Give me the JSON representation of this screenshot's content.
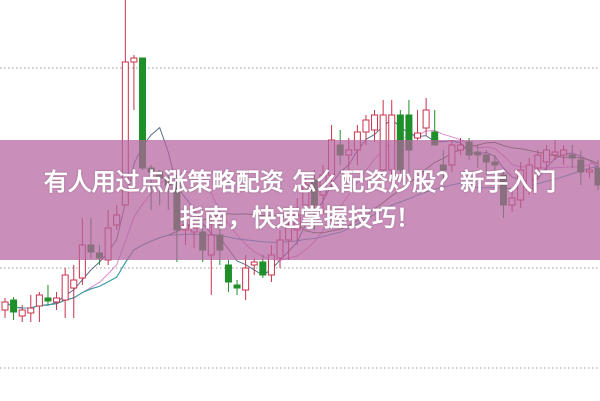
{
  "banner": {
    "line1": "有人用过点涨策略配资 怎么配资炒股？新手入门",
    "line2": "指南，快速掌握技巧！"
  },
  "colors": {
    "up": "#c8304a",
    "down": "#1f8f2a",
    "banner": "#b464a0",
    "grid": "#999999"
  },
  "chart_data": {
    "type": "candlestick",
    "title": "",
    "grid": "horizontal dotted",
    "moving_averages": [
      {
        "window": 5,
        "color": "#5a6e8c"
      },
      {
        "window": 10,
        "color": "#e08ad0"
      },
      {
        "window": 20,
        "color": "#4a7a3a"
      },
      {
        "window": 40,
        "color": "#3aa0b0"
      }
    ],
    "candles_ohlc": [
      [
        90,
        102,
        82,
        98
      ],
      [
        100,
        103,
        80,
        88
      ],
      [
        84,
        95,
        78,
        90
      ],
      [
        87,
        105,
        78,
        92
      ],
      [
        94,
        108,
        78,
        105
      ],
      [
        102,
        115,
        95,
        99
      ],
      [
        98,
        108,
        90,
        102
      ],
      [
        100,
        132,
        82,
        125
      ],
      [
        112,
        135,
        82,
        120
      ],
      [
        122,
        182,
        115,
        155
      ],
      [
        155,
        182,
        142,
        148
      ],
      [
        147,
        155,
        135,
        142
      ],
      [
        140,
        190,
        135,
        172
      ],
      [
        175,
        195,
        170,
        185
      ],
      [
        195,
        400,
        195,
        338
      ],
      [
        338,
        345,
        290,
        342
      ],
      [
        342,
        342,
        230,
        232
      ],
      [
        232,
        235,
        190,
        228
      ],
      [
        228,
        230,
        195,
        222
      ],
      [
        222,
        225,
        190,
        215
      ],
      [
        218,
        225,
        138,
        170
      ],
      [
        170,
        180,
        155,
        175
      ],
      [
        168,
        175,
        152,
        172
      ],
      [
        168,
        175,
        138,
        150
      ],
      [
        145,
        180,
        105,
        165
      ],
      [
        165,
        178,
        135,
        150
      ],
      [
        135,
        140,
        108,
        118
      ],
      [
        115,
        120,
        105,
        112
      ],
      [
        110,
        145,
        100,
        132
      ],
      [
        135,
        142,
        125,
        138
      ],
      [
        138,
        145,
        122,
        125
      ],
      [
        125,
        155,
        118,
        145
      ],
      [
        142,
        170,
        132,
        160
      ],
      [
        160,
        180,
        140,
        175
      ],
      [
        170,
        202,
        155,
        185
      ],
      [
        195,
        222,
        180,
        215
      ],
      [
        220,
        230,
        170,
        195
      ],
      [
        205,
        235,
        185,
        225
      ],
      [
        225,
        275,
        210,
        260
      ],
      [
        255,
        270,
        235,
        245
      ],
      [
        245,
        262,
        230,
        250
      ],
      [
        250,
        275,
        235,
        268
      ],
      [
        268,
        285,
        255,
        280
      ],
      [
        270,
        290,
        258,
        285
      ],
      [
        230,
        300,
        225,
        285
      ],
      [
        230,
        300,
        225,
        285
      ],
      [
        285,
        290,
        220,
        230
      ],
      [
        285,
        300,
        225,
        250
      ],
      [
        262,
        290,
        260,
        267
      ],
      [
        272,
        302,
        265,
        290
      ],
      [
        268,
        290,
        265,
        255
      ],
      [
        235,
        250,
        215,
        230
      ],
      [
        235,
        260,
        228,
        255
      ],
      [
        250,
        262,
        245,
        255
      ],
      [
        258,
        262,
        240,
        245
      ],
      [
        248,
        255,
        232,
        245
      ],
      [
        245,
        250,
        225,
        238
      ],
      [
        238,
        245,
        225,
        235
      ],
      [
        225,
        230,
        182,
        195
      ],
      [
        195,
        210,
        188,
        202
      ],
      [
        200,
        238,
        192,
        230
      ],
      [
        210,
        242,
        205,
        235
      ],
      [
        232,
        250,
        220,
        245
      ],
      [
        238,
        255,
        228,
        250
      ],
      [
        245,
        260,
        240,
        248
      ],
      [
        245,
        255,
        235,
        250
      ],
      [
        245,
        255,
        232,
        242
      ],
      [
        240,
        250,
        215,
        228
      ],
      [
        228,
        235,
        222,
        230
      ],
      [
        232,
        240,
        210,
        215
      ]
    ]
  }
}
